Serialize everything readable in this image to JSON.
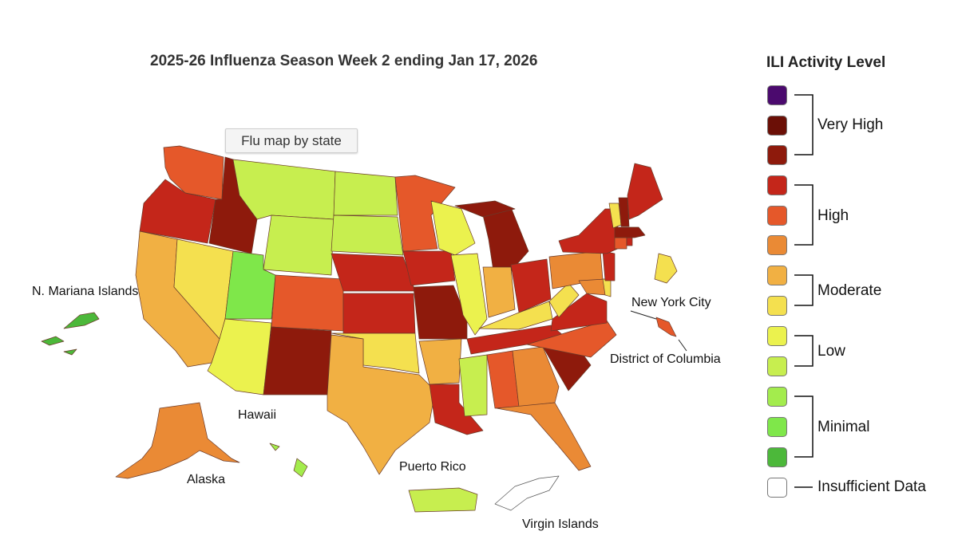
{
  "map": {
    "title": "2025-26 Influenza Season Week 2 ending Jan 17, 2026",
    "tooltip": "Flu map by state",
    "territory_labels": {
      "mariana": "N. Mariana Islands",
      "hawaii": "Hawaii",
      "alaska": "Alaska",
      "puerto_rico": "Puerto Rico",
      "virgin_islands": "Virgin Islands",
      "nyc": "New York City",
      "dc": "District of Columbia"
    }
  },
  "legend": {
    "title": "ILI Activity Level",
    "levels": [
      {
        "color": "#4b0a6e"
      },
      {
        "color": "#6b0f06"
      },
      {
        "color": "#8e1a0c"
      },
      {
        "color": "#c4261a"
      },
      {
        "color": "#e5582a"
      },
      {
        "color": "#ea8a35"
      },
      {
        "color": "#f1b043"
      },
      {
        "color": "#f4e04f"
      },
      {
        "color": "#ebf24e"
      },
      {
        "color": "#c7ee4f"
      },
      {
        "color": "#a3ec4d"
      },
      {
        "color": "#7fe74a"
      },
      {
        "color": "#4cb83a"
      },
      {
        "color": "#ffffff"
      }
    ],
    "groups": {
      "very_high": "Very High",
      "high": "High",
      "moderate": "Moderate",
      "low": "Low",
      "minimal": "Minimal",
      "insufficient": "Insufficient Data"
    }
  }
}
